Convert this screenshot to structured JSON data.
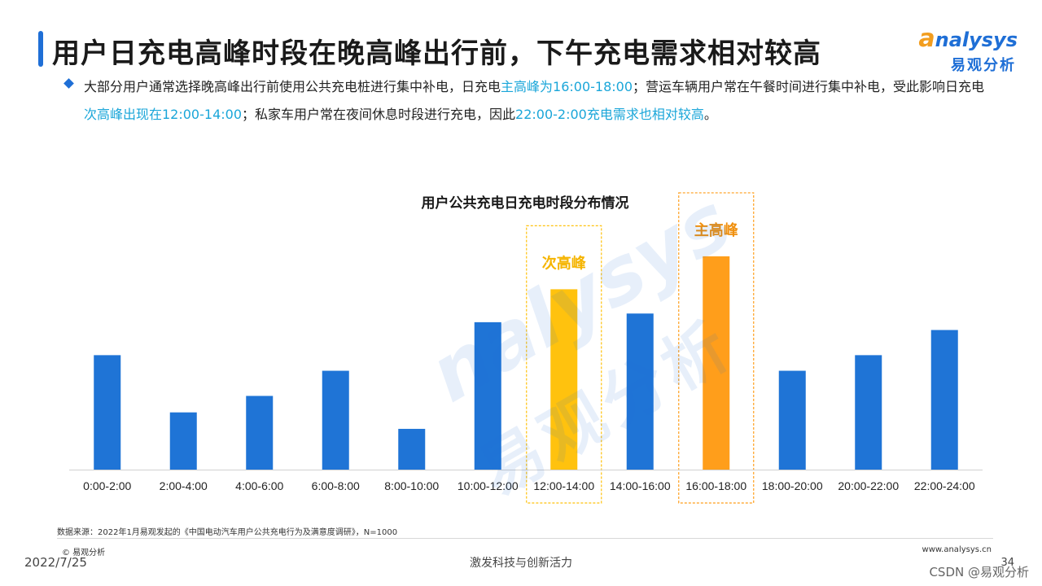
{
  "slide": {
    "title": "用户日充电高峰时段在晚高峰出行前，下午充电需求相对较高",
    "logo_en": "nalysys",
    "logo_en_initial": "a",
    "logo_cn": "易观分析",
    "bullet": {
      "p1": "大部分用户通常选择晚高峰出行前使用公共充电桩进行集中补电，日充电",
      "h1": "主高峰为16:00-18:00",
      "p2": "；营运车辆用户常在午餐时间进行集中补电，受此影响日充电",
      "h2": "次高峰出现在12:00-14:00",
      "p3": "；私家车用户常在夜间休息时段进行充电，因此",
      "h3": "22:00-2:00充电需求也相对较高",
      "p4": "。"
    },
    "watermark_en": "nalysys",
    "watermark_cn": "易观分析",
    "source": "数据来源：2022年1月易观发起的《中国电动汽车用户公共充电行为及满意度调研》，N=1000",
    "copyright": "© 易观分析",
    "date": "2022/7/25",
    "slogan": "激发科技与创新活力",
    "website": "www.analysys.cn",
    "page_number": "34",
    "csdn_mark": "CSDN @易观分析"
  },
  "chart_data": {
    "type": "bar",
    "title": "用户公共充电日充电时段分布情况",
    "categories": [
      "0:00-2:00",
      "2:00-4:00",
      "4:00-6:00",
      "6:00-8:00",
      "8:00-10:00",
      "10:00-12:00",
      "12:00-14:00",
      "14:00-16:00",
      "16:00-18:00",
      "18:00-20:00",
      "20:00-22:00",
      "22:00-24:00"
    ],
    "values": [
      132,
      66,
      85,
      114,
      47,
      170,
      208,
      180,
      246,
      114,
      132,
      161
    ],
    "ylim": [
      0,
      260
    ],
    "grid": false,
    "bar_color": "#1f74d6",
    "highlights": [
      {
        "index": 6,
        "label": "次高峰",
        "color": "#ffc20e",
        "label_color": "#f5b400"
      },
      {
        "index": 8,
        "label": "主高峰",
        "color": "#ff9e1b",
        "label_color": "#f0900e"
      }
    ]
  }
}
